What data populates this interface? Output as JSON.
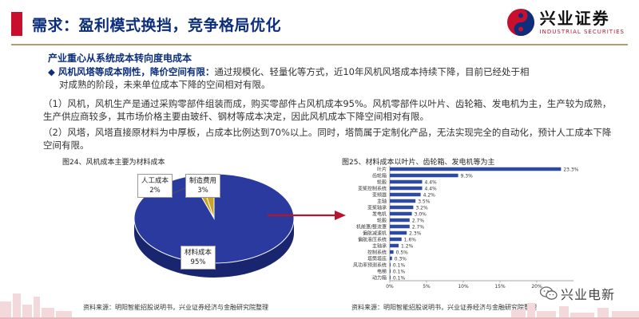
{
  "header": {
    "title": "需求：盈利模式换挡，竞争格局优化",
    "logo_cn": "兴业证券",
    "logo_en": "INDUSTRIAL SECURITIES"
  },
  "body": {
    "section_heading": "产业重心从系统成本转向度电成本",
    "bullet_bold": "风机风塔等成本刚性，降价空间有限：",
    "bullet_line1": "通过规模化、轻量化等方式，近10年风机风塔成本持续下降，目前已经处于相",
    "bullet_line2": "对成熟的阶段，未来单位成本下降的空间相对有限。",
    "p2": "（1）风机，风机生产是通过采购零部件组装而成，购买零部件占风机成本95%。风机零部件以叶片、齿轮箱、发电机为主，生产较为成熟，生产供应商较多，其市场价格主要由玻纤、钢材等成本决定，因此风机成本下降空间相对有限。",
    "p3": "（2）风塔，风塔直接原材料为中厚板，占成本比例达到70%以上。同时，塔筒属于定制化产品，无法实现完全的自动化，预计人工成本下降空间有限。"
  },
  "figures": {
    "left_caption": "图24、风机成本主要为材料成本",
    "right_caption": "图25、材料成本以叶片、齿轮箱、发电机等为主",
    "left_source": "资料来源：明阳智能招股说明书，兴业证券经济与金融研究院整理",
    "right_source": "资料来源：明阳智能招股说明书，兴业证券经济与金融研究院整理"
  },
  "watermark": {
    "text": "兴业电新"
  },
  "colors": {
    "title_blue": "#0c2e7c",
    "accent_red": "#c8102e",
    "pie_blue": "#2b3a9f",
    "pie_gold": "#c9a227",
    "bar_blue": "#2e4a9e",
    "arrow_red": "#b8142a"
  },
  "chart_data": [
    {
      "type": "pie",
      "title": "",
      "slices": [
        {
          "label": "人工成本",
          "value": 2,
          "display": "2%"
        },
        {
          "label": "制造费用",
          "value": 3,
          "display": "3%"
        },
        {
          "label": "材料成本",
          "value": 95,
          "display": "95%"
        }
      ]
    },
    {
      "type": "bar",
      "orientation": "horizontal",
      "title": "",
      "categories": [
        "叶片",
        "齿轮箱",
        "轮毂",
        "变桨控制系统",
        "变频器",
        "主轴",
        "变桨轴承",
        "发电机",
        "轮毂",
        "机舱罩/整流罩",
        "偏航减速机",
        "偏航液压系统",
        "主轴承",
        "控制系统",
        "塔筒塔底",
        "风功率预测系统",
        "电梯",
        "动力箱"
      ],
      "values": [
        23.3,
        9.3,
        4.4,
        4.4,
        4.2,
        3.5,
        3.2,
        3.0,
        2.7,
        2.7,
        2.3,
        1.6,
        1.2,
        0.5,
        0.3,
        0.1,
        0.1,
        0.1
      ],
      "value_labels": [
        "23.3%",
        "9.3%",
        "4.4%",
        "4.4%",
        "4.2%",
        "3.5%",
        "3.2%",
        "3.0%",
        "2.7%",
        "2.7%",
        "2.3%",
        "1.6%",
        "1.2%",
        "0.5%",
        "0.3%",
        "0.1%",
        "0.1%",
        "0.1%"
      ],
      "xlim": [
        0,
        25
      ],
      "xticks": [
        "0%",
        "5%",
        "10%",
        "15%",
        "20%"
      ],
      "grid": false
    }
  ]
}
